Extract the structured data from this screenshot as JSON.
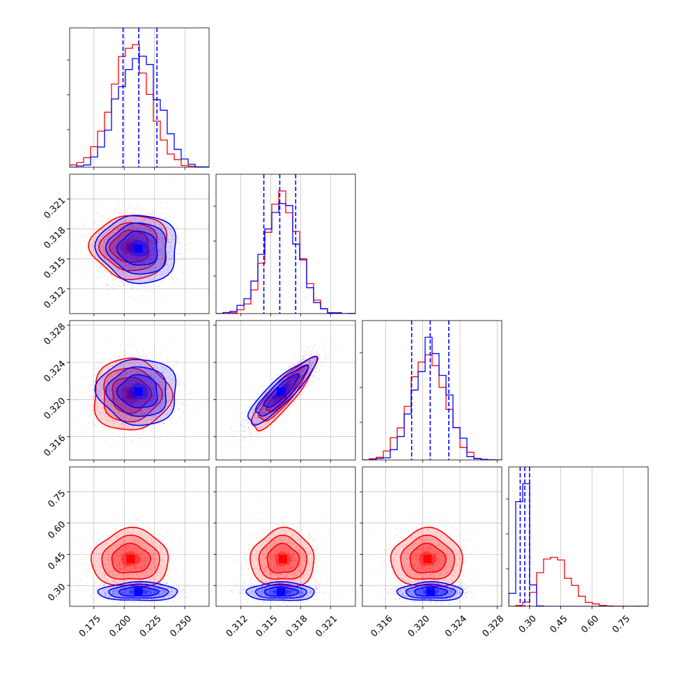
{
  "colors": {
    "series_red": "#ff0000",
    "series_blue": "#0000ff",
    "grid": "#b0b0b0",
    "quantile_line": "#0000ff"
  },
  "chart_data": {
    "type": "corner",
    "grid": true,
    "params": [
      {
        "range": [
          0.155,
          0.27
        ],
        "ticks": [
          "0.175",
          "0.200",
          "0.225",
          "0.250"
        ],
        "tick_values": [
          0.175,
          0.2,
          0.225,
          0.25
        ]
      },
      {
        "range": [
          0.3095,
          0.3235
        ],
        "ticks": [
          "0.312",
          "0.315",
          "0.318",
          "0.321"
        ],
        "tick_values": [
          0.312,
          0.315,
          0.318,
          0.321
        ]
      },
      {
        "range": [
          0.3135,
          0.3285
        ],
        "ticks": [
          "0.316",
          "0.320",
          "0.324",
          "0.328"
        ],
        "tick_values": [
          0.316,
          0.32,
          0.324,
          0.328
        ]
      },
      {
        "range": [
          0.2,
          0.87
        ],
        "ticks": [
          "0.30",
          "0.45",
          "0.60",
          "0.75"
        ],
        "tick_values": [
          0.3,
          0.45,
          0.6,
          0.75
        ]
      }
    ],
    "series": [
      {
        "color": "red",
        "mean": [
          0.205,
          0.3162,
          0.3205,
          0.42
        ],
        "sd": [
          0.016,
          0.0016,
          0.0019,
          0.075
        ],
        "corr_12": 0.88
      },
      {
        "color": "blue",
        "mean": [
          0.212,
          0.316,
          0.3208,
          0.27
        ],
        "sd": [
          0.016,
          0.0017,
          0.0018,
          0.022
        ],
        "corr_12": 0.88
      }
    ],
    "quantiles": [
      [
        0.199,
        0.212,
        0.227
      ],
      [
        0.3143,
        0.3159,
        0.3175
      ],
      [
        0.3188,
        0.3208,
        0.3228
      ],
      [
        0.255,
        0.277,
        0.3
      ]
    ],
    "levels_sigma": [
      0.5,
      1.0,
      1.5,
      2.0
    ]
  }
}
